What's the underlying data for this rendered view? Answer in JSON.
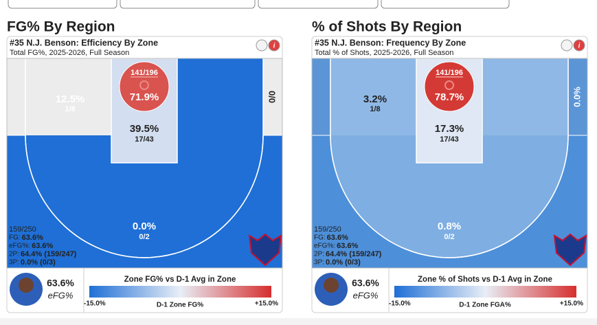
{
  "panels": [
    {
      "heading": "FG% By Region",
      "title": "#35 N.J. Benson: Efficiency By Zone",
      "subtitle": "Total FG%, 2025-2026, Full Season",
      "zones": {
        "circle": {
          "top": "141/196",
          "main": "71.9%"
        },
        "left": {
          "main": "12.5%",
          "sub": "1/8"
        },
        "right": {
          "main": "0/0"
        },
        "paint": {
          "main": "39.5%",
          "sub": "17/43"
        },
        "three": {
          "main": "0.0%",
          "sub": "0/2"
        }
      },
      "stats": {
        "count": "159/250",
        "fg_label": "FG:",
        "fg": "63.6%",
        "efg_label": "eFG%:",
        "efg": "63.6%",
        "two_label": "2P:",
        "two": "64.4% (159/247)",
        "three_label": "3P:",
        "three": "0.0% (0/3)"
      },
      "footer": {
        "value": "63.6%",
        "label": "eFG%",
        "bar_title": "Zone FG% vs D-1 Avg in Zone",
        "min": "-15.0%",
        "axis_label": "D-1 Zone FG%",
        "max": "+15.0%"
      }
    },
    {
      "heading": "% of Shots By Region",
      "title": "#35 N.J. Benson: Frequency By Zone",
      "subtitle": "Total % of Shots, 2025-2026, Full Season",
      "zones": {
        "circle": {
          "top": "141/196",
          "main": "78.7%"
        },
        "left": {
          "main": "3.2%",
          "sub": "1/8"
        },
        "right": {
          "main": "0.0%"
        },
        "paint": {
          "main": "17.3%",
          "sub": "17/43"
        },
        "three": {
          "main": "0.8%",
          "sub": "0/2"
        }
      },
      "stats": {
        "count": "159/250",
        "fg_label": "FG:",
        "fg": "63.6%",
        "efg_label": "eFG%:",
        "efg": "63.6%",
        "two_label": "2P:",
        "two": "64.4% (159/247)",
        "three_label": "3P:",
        "three": "0.0% (0/3)"
      },
      "footer": {
        "value": "63.6%",
        "label": "eFG%",
        "bar_title": "Zone % of Shots vs D-1 Avg in Zone",
        "min": "-15.0%",
        "axis_label": "D-1 Zone FGA%",
        "max": "+15.0%"
      }
    }
  ]
}
